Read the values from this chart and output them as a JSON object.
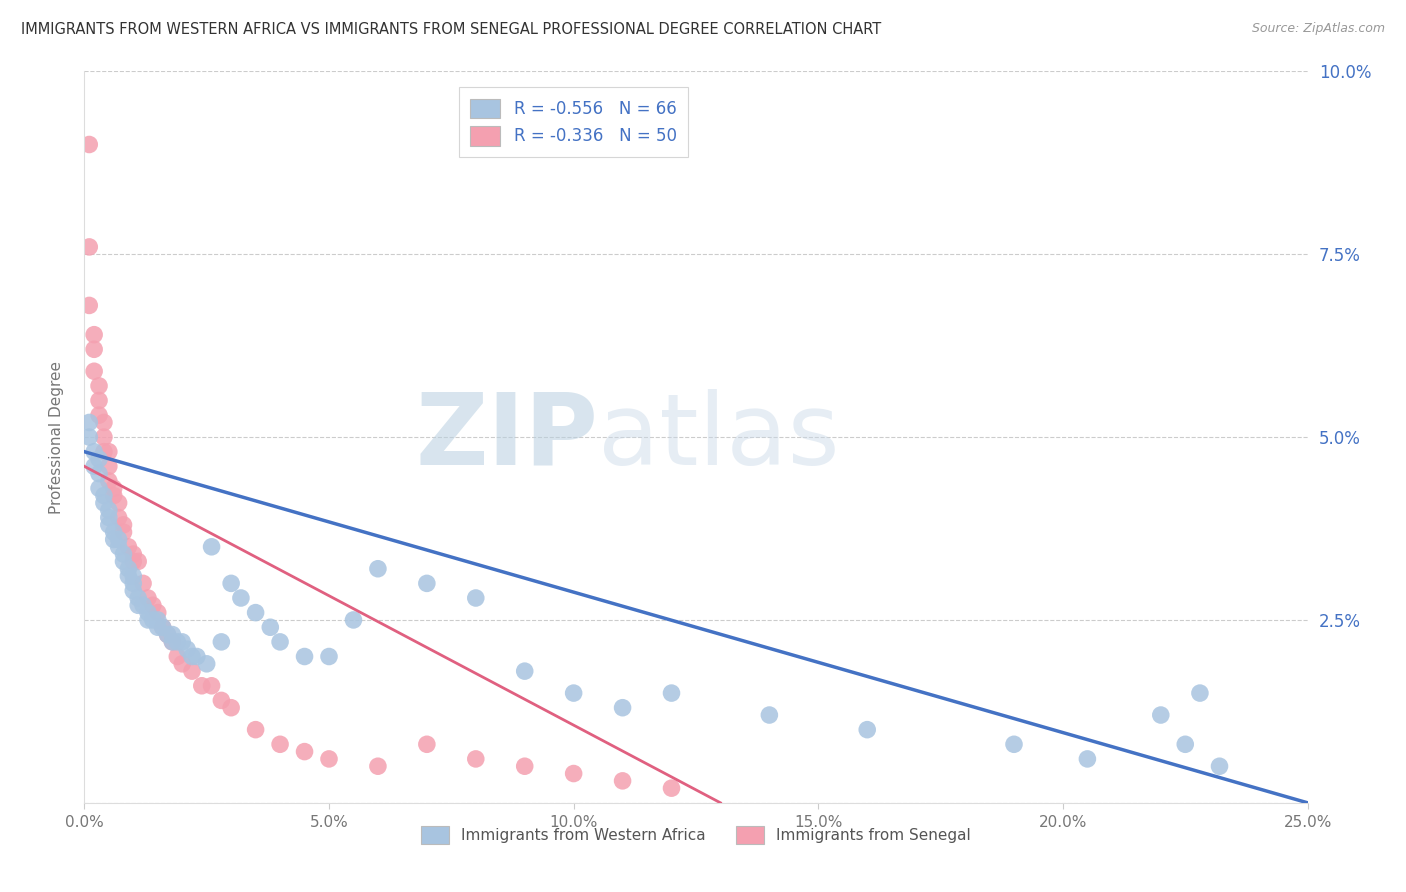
{
  "title": "IMMIGRANTS FROM WESTERN AFRICA VS IMMIGRANTS FROM SENEGAL PROFESSIONAL DEGREE CORRELATION CHART",
  "source": "Source: ZipAtlas.com",
  "xlabel_blue": "Immigrants from Western Africa",
  "xlabel_pink": "Immigrants from Senegal",
  "ylabel": "Professional Degree",
  "xlim": [
    0.0,
    0.25
  ],
  "ylim": [
    0.0,
    0.1
  ],
  "xticks": [
    0.0,
    0.05,
    0.1,
    0.15,
    0.2,
    0.25
  ],
  "yticks": [
    0.0,
    0.025,
    0.05,
    0.075,
    0.1
  ],
  "xtick_labels": [
    "0.0%",
    "5.0%",
    "10.0%",
    "15.0%",
    "20.0%",
    "25.0%"
  ],
  "ytick_labels_right": [
    "",
    "2.5%",
    "5.0%",
    "7.5%",
    "10.0%"
  ],
  "blue_R": -0.556,
  "blue_N": 66,
  "pink_R": -0.336,
  "pink_N": 50,
  "blue_color": "#a8c4e0",
  "pink_color": "#f4a0b0",
  "blue_line_color": "#4472c4",
  "pink_line_color": "#e06080",
  "watermark": "ZIPatlas",
  "watermark_color": "#c8d8ea",
  "background_color": "#ffffff",
  "blue_line_x0": 0.0,
  "blue_line_y0": 0.048,
  "blue_line_x1": 0.25,
  "blue_line_y1": 0.0,
  "pink_line_x0": 0.0,
  "pink_line_y0": 0.046,
  "pink_line_x1": 0.13,
  "pink_line_y1": 0.0,
  "blue_scatter_x": [
    0.001,
    0.001,
    0.002,
    0.002,
    0.003,
    0.003,
    0.003,
    0.004,
    0.004,
    0.005,
    0.005,
    0.005,
    0.006,
    0.006,
    0.007,
    0.007,
    0.008,
    0.008,
    0.009,
    0.009,
    0.01,
    0.01,
    0.01,
    0.011,
    0.011,
    0.012,
    0.013,
    0.013,
    0.014,
    0.015,
    0.015,
    0.016,
    0.017,
    0.018,
    0.018,
    0.019,
    0.02,
    0.021,
    0.022,
    0.023,
    0.025,
    0.026,
    0.028,
    0.03,
    0.032,
    0.035,
    0.038,
    0.04,
    0.045,
    0.05,
    0.055,
    0.06,
    0.07,
    0.08,
    0.09,
    0.1,
    0.11,
    0.12,
    0.14,
    0.16,
    0.19,
    0.205,
    0.22,
    0.225,
    0.228,
    0.232
  ],
  "blue_scatter_y": [
    0.05,
    0.052,
    0.048,
    0.046,
    0.047,
    0.045,
    0.043,
    0.042,
    0.041,
    0.039,
    0.04,
    0.038,
    0.037,
    0.036,
    0.036,
    0.035,
    0.034,
    0.033,
    0.032,
    0.031,
    0.031,
    0.03,
    0.029,
    0.028,
    0.027,
    0.027,
    0.026,
    0.025,
    0.025,
    0.025,
    0.024,
    0.024,
    0.023,
    0.023,
    0.022,
    0.022,
    0.022,
    0.021,
    0.02,
    0.02,
    0.019,
    0.035,
    0.022,
    0.03,
    0.028,
    0.026,
    0.024,
    0.022,
    0.02,
    0.02,
    0.025,
    0.032,
    0.03,
    0.028,
    0.018,
    0.015,
    0.013,
    0.015,
    0.012,
    0.01,
    0.008,
    0.006,
    0.012,
    0.008,
    0.015,
    0.005
  ],
  "pink_scatter_x": [
    0.001,
    0.001,
    0.001,
    0.002,
    0.002,
    0.002,
    0.003,
    0.003,
    0.003,
    0.004,
    0.004,
    0.004,
    0.005,
    0.005,
    0.005,
    0.006,
    0.006,
    0.007,
    0.007,
    0.008,
    0.008,
    0.009,
    0.01,
    0.01,
    0.011,
    0.012,
    0.013,
    0.014,
    0.015,
    0.016,
    0.017,
    0.018,
    0.019,
    0.02,
    0.022,
    0.024,
    0.026,
    0.028,
    0.03,
    0.035,
    0.04,
    0.045,
    0.05,
    0.06,
    0.07,
    0.08,
    0.09,
    0.1,
    0.11,
    0.12
  ],
  "pink_scatter_y": [
    0.09,
    0.076,
    0.068,
    0.064,
    0.062,
    0.059,
    0.057,
    0.055,
    0.053,
    0.052,
    0.05,
    0.048,
    0.048,
    0.046,
    0.044,
    0.043,
    0.042,
    0.041,
    0.039,
    0.038,
    0.037,
    0.035,
    0.034,
    0.033,
    0.033,
    0.03,
    0.028,
    0.027,
    0.026,
    0.024,
    0.023,
    0.022,
    0.02,
    0.019,
    0.018,
    0.016,
    0.016,
    0.014,
    0.013,
    0.01,
    0.008,
    0.007,
    0.006,
    0.005,
    0.008,
    0.006,
    0.005,
    0.004,
    0.003,
    0.002
  ]
}
